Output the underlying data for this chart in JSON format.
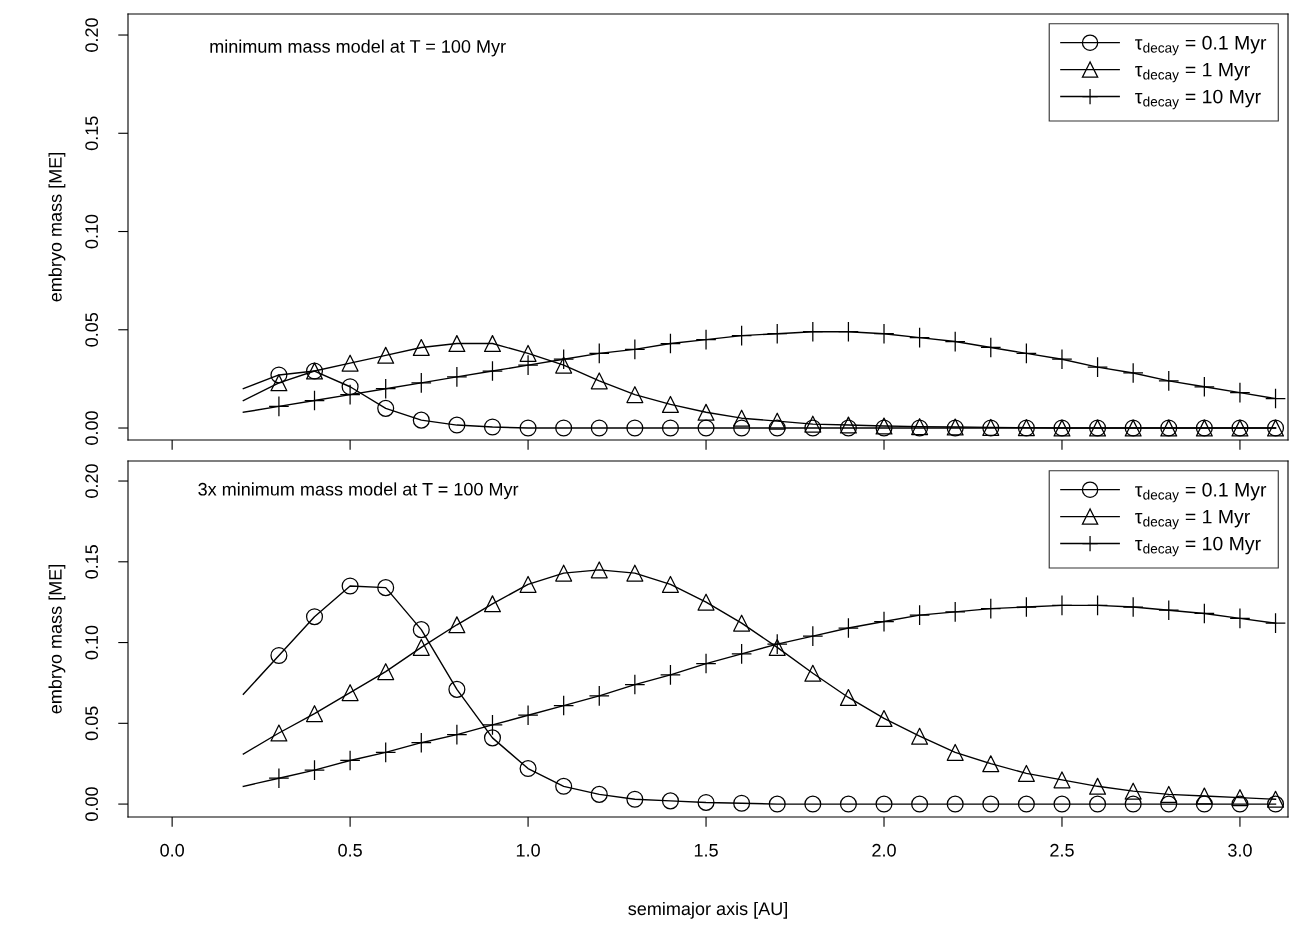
{
  "chart_data": [
    {
      "type": "line",
      "annotations": [
        "minimum mass model at T = 100 Myr"
      ],
      "ylabel": "embryo mass [ME]",
      "xlim": [
        -0.124,
        3.135
      ],
      "ylim": [
        -0.0061,
        0.2107
      ],
      "xticks": [
        {
          "value": 0.0,
          "label": null
        },
        {
          "value": 0.5,
          "label": null
        },
        {
          "value": 1.0,
          "label": null
        },
        {
          "value": 1.5,
          "label": null
        },
        {
          "value": 2.0,
          "label": null
        },
        {
          "value": 2.5,
          "label": null
        },
        {
          "value": 3.0,
          "label": null
        }
      ],
      "yticks": [
        {
          "value": 0.0,
          "label": "0.00"
        },
        {
          "value": 0.05,
          "label": "0.05"
        },
        {
          "value": 0.1,
          "label": "0.10"
        },
        {
          "value": 0.15,
          "label": "0.15"
        },
        {
          "value": 0.2,
          "label": "0.20"
        }
      ],
      "tick_labels": "y",
      "legend": "top right",
      "grid": false,
      "series": [
        {
          "marker": "none",
          "color": "#000000",
          "x": [
            0.2,
            0.3,
            0.4,
            0.5,
            0.6,
            0.7,
            0.8,
            0.9,
            1.0,
            1.1,
            1.2,
            1.3,
            1.4,
            1.5,
            1.6,
            1.7,
            1.8,
            1.9,
            2.0,
            2.1,
            2.2,
            2.3,
            2.4,
            2.5,
            2.6,
            2.7,
            2.8,
            2.9,
            3.0,
            3.1
          ],
          "values": [
            0.02,
            0.027,
            0.029,
            0.021,
            0.01,
            0.004,
            0.0015,
            0.0005,
            0,
            0,
            0,
            0,
            0,
            0,
            0,
            0,
            0,
            0,
            0,
            0,
            0,
            0,
            0,
            0,
            0,
            0,
            0,
            0,
            0,
            0
          ]
        },
        {
          "type": "scatter",
          "marker": "circle",
          "name": "τ$_{decay}$ = 0.1 Myr",
          "color": "#000000",
          "x": [
            0.3,
            0.4,
            0.5,
            0.6,
            0.7,
            0.8,
            0.9,
            1.0,
            1.1,
            1.2,
            1.3,
            1.4,
            1.5,
            1.6,
            1.7,
            1.8,
            1.9,
            2.0,
            2.1,
            2.2,
            2.3,
            2.4,
            2.5,
            2.6,
            2.7,
            2.8,
            2.9,
            3.0,
            3.1
          ],
          "values": [
            0.027,
            0.029,
            0.021,
            0.01,
            0.004,
            0.0015,
            0.0005,
            0,
            0,
            0,
            0,
            0,
            0,
            0,
            0,
            0,
            0,
            0,
            0,
            0,
            0,
            0,
            0,
            0,
            0,
            0,
            0,
            0,
            0
          ]
        },
        {
          "marker": "none",
          "color": "#000000",
          "x": [
            0.2,
            0.3,
            0.4,
            0.5,
            0.6,
            0.7,
            0.8,
            0.9,
            1.0,
            1.1,
            1.2,
            1.3,
            1.4,
            1.5,
            1.6,
            1.7,
            1.8,
            1.9,
            2.0,
            2.1,
            2.2,
            2.3,
            2.4,
            2.5,
            2.6,
            2.7,
            2.8,
            2.9,
            3.0,
            3.1
          ],
          "values": [
            0.014,
            0.023,
            0.029,
            0.033,
            0.037,
            0.041,
            0.043,
            0.043,
            0.038,
            0.032,
            0.024,
            0.017,
            0.012,
            0.008,
            0.005,
            0.0035,
            0.002,
            0.0015,
            0.001,
            0.0007,
            0.0005,
            0.0003,
            0.0002,
            0,
            0,
            0,
            0,
            0,
            0,
            0
          ]
        },
        {
          "type": "scatter",
          "marker": "triangle",
          "name": "τ$_{decay}$ = 1 Myr",
          "color": "#000000",
          "x": [
            0.3,
            0.4,
            0.5,
            0.6,
            0.7,
            0.8,
            0.9,
            1.0,
            1.1,
            1.2,
            1.3,
            1.4,
            1.5,
            1.6,
            1.7,
            1.8,
            1.9,
            2.0,
            2.1,
            2.2,
            2.3,
            2.4,
            2.5,
            2.6,
            2.7,
            2.8,
            2.9,
            3.0,
            3.1
          ],
          "values": [
            0.023,
            0.029,
            0.033,
            0.037,
            0.041,
            0.043,
            0.043,
            0.038,
            0.032,
            0.024,
            0.017,
            0.012,
            0.008,
            0.005,
            0.0035,
            0.002,
            0.0015,
            0.001,
            0.0007,
            0.0005,
            0.0003,
            0.0002,
            0,
            0,
            0,
            0,
            0,
            0,
            0
          ]
        },
        {
          "marker": "none",
          "color": "#000000",
          "x": [
            0.2,
            0.3,
            0.4,
            0.5,
            0.6,
            0.7,
            0.8,
            0.9,
            1.0,
            1.1,
            1.2,
            1.3,
            1.4,
            1.5,
            1.6,
            1.7,
            1.8,
            1.9,
            2.0,
            2.1,
            2.2,
            2.3,
            2.4,
            2.5,
            2.6,
            2.7,
            2.8,
            2.9,
            3.0,
            3.1
          ],
          "values": [
            0.008,
            0.011,
            0.014,
            0.017,
            0.02,
            0.023,
            0.026,
            0.029,
            0.032,
            0.035,
            0.038,
            0.04,
            0.043,
            0.045,
            0.047,
            0.048,
            0.049,
            0.049,
            0.048,
            0.046,
            0.044,
            0.041,
            0.038,
            0.035,
            0.031,
            0.028,
            0.024,
            0.021,
            0.018,
            0.015
          ]
        },
        {
          "type": "scatter",
          "marker": "cross",
          "name": "τ$_{decay}$ = 10 Myr",
          "color": "#000000",
          "x": [
            0.3,
            0.4,
            0.5,
            0.6,
            0.7,
            0.8,
            0.9,
            1.0,
            1.1,
            1.2,
            1.3,
            1.4,
            1.5,
            1.6,
            1.7,
            1.8,
            1.9,
            2.0,
            2.1,
            2.2,
            2.3,
            2.4,
            2.5,
            2.6,
            2.7,
            2.8,
            2.9,
            3.0,
            3.1
          ],
          "values": [
            0.011,
            0.014,
            0.017,
            0.02,
            0.023,
            0.026,
            0.029,
            0.032,
            0.035,
            0.038,
            0.04,
            0.043,
            0.045,
            0.047,
            0.048,
            0.049,
            0.049,
            0.048,
            0.046,
            0.044,
            0.041,
            0.038,
            0.035,
            0.031,
            0.028,
            0.024,
            0.021,
            0.018,
            0.015
          ]
        }
      ]
    },
    {
      "type": "line",
      "annotations": [
        "3x minimum mass model at T = 100 Myr"
      ],
      "xlabel": "semimajor axis [AU]",
      "ylabel": "embryo mass [ME]",
      "xlim": [
        -0.124,
        3.135
      ],
      "ylim": [
        -0.008,
        0.2124
      ],
      "xticks": [
        {
          "value": 0.0,
          "label": "0.0"
        },
        {
          "value": 0.5,
          "label": "0.5"
        },
        {
          "value": 1.0,
          "label": "1.0"
        },
        {
          "value": 1.5,
          "label": "1.5"
        },
        {
          "value": 2.0,
          "label": "2.0"
        },
        {
          "value": 2.5,
          "label": "2.5"
        },
        {
          "value": 3.0,
          "label": "3.0"
        }
      ],
      "yticks": [
        {
          "value": 0.0,
          "label": "0.00"
        },
        {
          "value": 0.05,
          "label": "0.05"
        },
        {
          "value": 0.1,
          "label": "0.10"
        },
        {
          "value": 0.15,
          "label": "0.15"
        },
        {
          "value": 0.2,
          "label": "0.20"
        }
      ],
      "legend": "top right",
      "grid": false,
      "series": [
        {
          "marker": "none",
          "color": "#000000",
          "x": [
            0.2,
            0.3,
            0.4,
            0.5,
            0.6,
            0.7,
            0.8,
            0.9,
            1.0,
            1.1,
            1.2,
            1.3,
            1.4,
            1.5,
            1.6,
            1.7,
            1.8,
            1.9,
            2.0,
            2.1,
            2.2,
            2.3,
            2.4,
            2.5,
            2.6,
            2.7,
            2.8,
            2.9,
            3.0,
            3.1
          ],
          "values": [
            0.068,
            0.092,
            0.116,
            0.135,
            0.134,
            0.108,
            0.071,
            0.041,
            0.022,
            0.011,
            0.006,
            0.003,
            0.002,
            0.001,
            0.0005,
            0,
            0,
            0,
            0,
            0,
            0,
            0,
            0,
            0,
            0,
            0,
            0,
            0,
            0,
            0
          ]
        },
        {
          "type": "scatter",
          "marker": "circle",
          "name": "τ$_{decay}$ = 0.1 Myr",
          "color": "#000000",
          "x": [
            0.3,
            0.4,
            0.5,
            0.6,
            0.7,
            0.8,
            0.9,
            1.0,
            1.1,
            1.2,
            1.3,
            1.4,
            1.5,
            1.6,
            1.7,
            1.8,
            1.9,
            2.0,
            2.1,
            2.2,
            2.3,
            2.4,
            2.5,
            2.6,
            2.7,
            2.8,
            2.9,
            3.0,
            3.1
          ],
          "values": [
            0.092,
            0.116,
            0.135,
            0.134,
            0.108,
            0.071,
            0.041,
            0.022,
            0.011,
            0.006,
            0.003,
            0.002,
            0.001,
            0.0005,
            0,
            0,
            0,
            0,
            0,
            0,
            0,
            0,
            0,
            0,
            0,
            0,
            0,
            0,
            0
          ]
        },
        {
          "marker": "none",
          "color": "#000000",
          "x": [
            0.2,
            0.3,
            0.4,
            0.5,
            0.6,
            0.7,
            0.8,
            0.9,
            1.0,
            1.1,
            1.2,
            1.3,
            1.4,
            1.5,
            1.6,
            1.7,
            1.8,
            1.9,
            2.0,
            2.1,
            2.2,
            2.3,
            2.4,
            2.5,
            2.6,
            2.7,
            2.8,
            2.9,
            3.0,
            3.1
          ],
          "values": [
            0.031,
            0.044,
            0.056,
            0.069,
            0.082,
            0.097,
            0.111,
            0.124,
            0.136,
            0.143,
            0.145,
            0.143,
            0.136,
            0.125,
            0.112,
            0.097,
            0.081,
            0.066,
            0.053,
            0.042,
            0.032,
            0.025,
            0.019,
            0.015,
            0.011,
            0.008,
            0.006,
            0.005,
            0.004,
            0.003
          ]
        },
        {
          "type": "scatter",
          "marker": "triangle",
          "name": "τ$_{decay}$ = 1 Myr",
          "color": "#000000",
          "x": [
            0.3,
            0.4,
            0.5,
            0.6,
            0.7,
            0.8,
            0.9,
            1.0,
            1.1,
            1.2,
            1.3,
            1.4,
            1.5,
            1.6,
            1.7,
            1.8,
            1.9,
            2.0,
            2.1,
            2.2,
            2.3,
            2.4,
            2.5,
            2.6,
            2.7,
            2.8,
            2.9,
            3.0,
            3.1
          ],
          "values": [
            0.044,
            0.056,
            0.069,
            0.082,
            0.097,
            0.111,
            0.124,
            0.136,
            0.143,
            0.145,
            0.143,
            0.136,
            0.125,
            0.112,
            0.097,
            0.081,
            0.066,
            0.053,
            0.042,
            0.032,
            0.025,
            0.019,
            0.015,
            0.011,
            0.008,
            0.006,
            0.005,
            0.004,
            0.003
          ]
        },
        {
          "marker": "none",
          "color": "#000000",
          "x": [
            0.2,
            0.3,
            0.4,
            0.5,
            0.6,
            0.7,
            0.8,
            0.9,
            1.0,
            1.1,
            1.2,
            1.3,
            1.4,
            1.5,
            1.6,
            1.7,
            1.8,
            1.9,
            2.0,
            2.1,
            2.2,
            2.3,
            2.4,
            2.5,
            2.6,
            2.7,
            2.8,
            2.9,
            3.0,
            3.1
          ],
          "values": [
            0.011,
            0.016,
            0.021,
            0.027,
            0.032,
            0.038,
            0.043,
            0.049,
            0.055,
            0.061,
            0.067,
            0.074,
            0.08,
            0.087,
            0.093,
            0.099,
            0.104,
            0.109,
            0.113,
            0.117,
            0.119,
            0.121,
            0.122,
            0.123,
            0.123,
            0.122,
            0.12,
            0.118,
            0.115,
            0.112
          ]
        },
        {
          "type": "scatter",
          "marker": "cross",
          "name": "τ$_{decay}$ = 10 Myr",
          "color": "#000000",
          "x": [
            0.3,
            0.4,
            0.5,
            0.6,
            0.7,
            0.8,
            0.9,
            1.0,
            1.1,
            1.2,
            1.3,
            1.4,
            1.5,
            1.6,
            1.7,
            1.8,
            1.9,
            2.0,
            2.1,
            2.2,
            2.3,
            2.4,
            2.5,
            2.6,
            2.7,
            2.8,
            2.9,
            3.0,
            3.1
          ],
          "values": [
            0.016,
            0.021,
            0.027,
            0.032,
            0.038,
            0.043,
            0.049,
            0.055,
            0.061,
            0.067,
            0.074,
            0.08,
            0.087,
            0.093,
            0.099,
            0.104,
            0.109,
            0.113,
            0.117,
            0.119,
            0.121,
            0.122,
            0.123,
            0.123,
            0.122,
            0.12,
            0.118,
            0.115,
            0.112
          ]
        }
      ]
    }
  ]
}
